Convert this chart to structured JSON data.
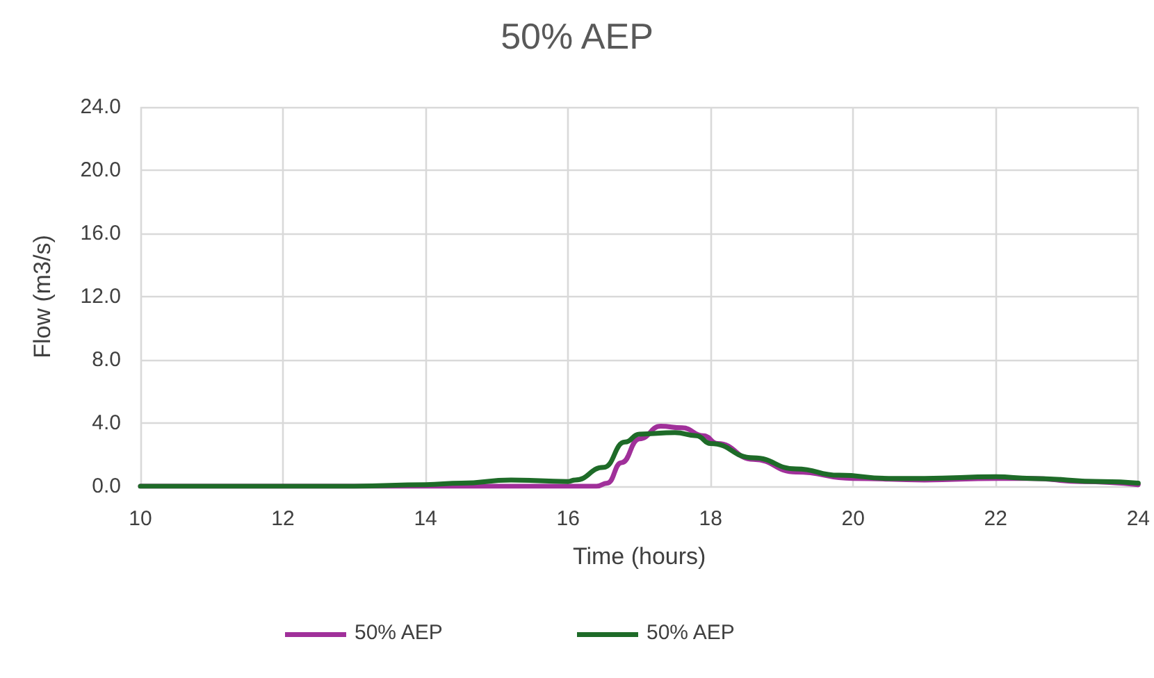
{
  "chart_data": {
    "type": "line",
    "title": "50% AEP",
    "xlabel": "Time (hours)",
    "ylabel": "Flow (m3/s)",
    "xlim": [
      10,
      24
    ],
    "xticks": [
      10,
      12,
      14,
      16,
      18,
      20,
      22,
      24
    ],
    "ylim": [
      0,
      24
    ],
    "yticks": [
      {
        "value": 0,
        "label": "0.0"
      },
      {
        "value": 4,
        "label": "4.0"
      },
      {
        "value": 8,
        "label": "8.0"
      },
      {
        "value": 12,
        "label": "12.0"
      },
      {
        "value": 16,
        "label": "16.0"
      },
      {
        "value": 20,
        "label": "20.0"
      },
      {
        "value": 24,
        "label": "24.0"
      }
    ],
    "grid": true,
    "legend": "bottom",
    "marker": "none",
    "line_style": "solid",
    "series": [
      {
        "name": "50% AEP",
        "color": "#a0309a",
        "x": [
          10,
          12,
          14,
          16,
          16.4,
          16.55,
          16.75,
          17,
          17.3,
          17.6,
          17.9,
          18.1,
          18.6,
          19.2,
          20,
          21,
          22,
          22.5,
          23.2,
          24
        ],
        "values": [
          0,
          0,
          0,
          0,
          0,
          0.2,
          1.5,
          3.0,
          3.8,
          3.7,
          3.2,
          2.7,
          1.7,
          0.9,
          0.5,
          0.4,
          0.5,
          0.5,
          0.3,
          0.1
        ]
      },
      {
        "name": "50% AEP",
        "color": "#1e6b28",
        "x": [
          10,
          12,
          13,
          14,
          14.5,
          15.2,
          16,
          16.1,
          16.5,
          16.8,
          17,
          17.5,
          17.8,
          18,
          18.6,
          19.2,
          19.8,
          20.5,
          21,
          22,
          22.5,
          23.5,
          24
        ],
        "values": [
          0,
          0,
          0,
          0.1,
          0.2,
          0.4,
          0.3,
          0.4,
          1.2,
          2.8,
          3.3,
          3.4,
          3.2,
          2.7,
          1.8,
          1.1,
          0.7,
          0.5,
          0.5,
          0.6,
          0.5,
          0.3,
          0.2
        ]
      }
    ]
  }
}
